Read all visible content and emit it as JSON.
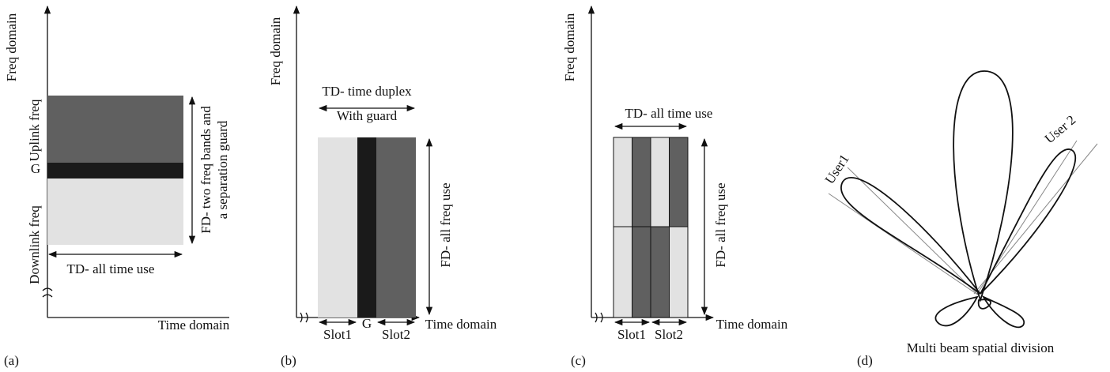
{
  "panel_a": {
    "y_label": "Freq domain",
    "uplink": "Uplink freq",
    "guard": "G",
    "downlink": "Downlink freq",
    "td_label": "TD- all time use",
    "fd_label": [
      "FD- two freq bands and",
      "a separation guard"
    ],
    "x_label": "Time domain",
    "caption": "(a)"
  },
  "panel_b": {
    "y_label": "Freq domain",
    "td_label": [
      "TD- time duplex",
      "With guard"
    ],
    "fd_label": "FD- all freq use",
    "slot1": "Slot1",
    "guard": "G",
    "slot2": "Slot2",
    "x_label": "Time domain",
    "caption": "(b)"
  },
  "panel_c": {
    "y_label": "Freq domain",
    "td_label": "TD- all time use",
    "fd_label": "FD- all freq use",
    "slot1": "Slot1",
    "slot2": "Slot2",
    "x_label": "Time domain",
    "caption": "(c)"
  },
  "panel_d": {
    "user1": "User1",
    "user2": "User 2",
    "title": "Multi beam spatial division",
    "caption": "(d)"
  }
}
